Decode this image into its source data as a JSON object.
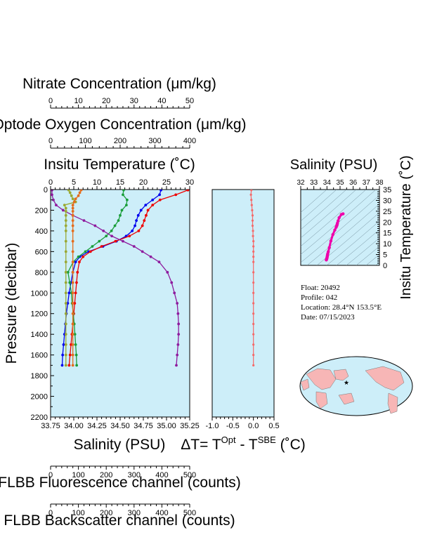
{
  "colors": {
    "panel_bg": "#cdeef9",
    "temperature": "#0000ee",
    "salinity": "#ee0000",
    "oxygen": "#1a9e3a",
    "nitrate": "#8e1b9e",
    "fluorescence": "#9aa832",
    "backscatter": "#e46c1c",
    "delta_t": "#f46a6a",
    "ts_line": "#ee00aa",
    "land": "#f7b6b6",
    "ocean": "#cdeef9",
    "marker": "#0000ee"
  },
  "icons": [
    "star-marker-icon"
  ],
  "axes": {
    "nitrate": {
      "title": "Nitrate Concentration (μm/kg)",
      "range": [
        0,
        50
      ],
      "ticks": [
        "0",
        "10",
        "20",
        "30",
        "40",
        "50"
      ]
    },
    "oxygen": {
      "title": "Optode Oxygen Concentration (μm/kg)",
      "range": [
        0,
        400
      ],
      "ticks": [
        "0",
        "100",
        "200",
        "300",
        "400"
      ]
    },
    "temperature": {
      "title": "Insitu Temperature (˚C)",
      "range": [
        0,
        30
      ],
      "ticks": [
        "0",
        "5",
        "10",
        "15",
        "20",
        "25",
        "30"
      ]
    },
    "pressure": {
      "title": "Pressure (decibar)",
      "range": [
        0,
        2200
      ],
      "ticks": [
        "0",
        "200",
        "400",
        "600",
        "800",
        "1000",
        "1200",
        "1400",
        "1600",
        "1800",
        "2000",
        "2200"
      ]
    },
    "salinity": {
      "title": "Salinity (PSU)",
      "range": [
        33.75,
        35.25
      ],
      "ticks": [
        "33.75",
        "34.00",
        "34.25",
        "34.50",
        "34.75",
        "35.00",
        "35.25"
      ]
    },
    "delta_t": {
      "title_main": "ΔT= T",
      "title_sup1": "Opt",
      "title_mid": " - T",
      "title_sup2": "SBE",
      "title_end": " (˚C)",
      "range": [
        -1.0,
        0.5
      ],
      "ticks": [
        "-1.0",
        "-0.5",
        "0.0",
        "0.5"
      ]
    },
    "fluorescence": {
      "title": "FLBB Fluorescence channel (counts)",
      "range": [
        0,
        500
      ],
      "ticks": [
        "0",
        "100",
        "200",
        "300",
        "400",
        "500"
      ]
    },
    "backscatter": {
      "title": "FLBB Backscatter channel (counts)",
      "range": [
        0,
        500
      ],
      "ticks": [
        "0",
        "100",
        "200",
        "300",
        "400",
        "500"
      ]
    },
    "ts_salinity": {
      "title": "Salinity (PSU)",
      "range": [
        32,
        38
      ],
      "ticks": [
        "32",
        "33",
        "34",
        "35",
        "36",
        "37",
        "38"
      ]
    },
    "ts_temperature": {
      "title": "Insitu Temperature (˚C)",
      "range": [
        0,
        35
      ],
      "ticks": [
        "0",
        "5",
        "10",
        "15",
        "20",
        "25",
        "30",
        "35"
      ]
    }
  },
  "info": {
    "float": "Float:  20492",
    "profile": "Profile:  042",
    "location": "Location:  28.4°N  153.5°E",
    "date": "Date:  07/15/2023"
  },
  "map": {
    "marker_lat": 28.4,
    "marker_lon": 153.5
  },
  "chart_data": {
    "type": "line",
    "y_axis": "pressure",
    "y_reversed": true,
    "series": [
      {
        "key": "temperature",
        "axis": "temperature",
        "x": [
          23.8,
          23.5,
          22.0,
          20.5,
          19.5,
          18.9,
          18.5,
          18.2,
          17.6,
          16.3,
          14.2,
          11.3,
          8.2,
          6.3,
          5.4,
          4.8,
          4.4,
          4.0,
          3.7,
          3.4,
          3.2,
          3.0,
          2.8,
          2.6,
          2.5
        ],
        "y": [
          5,
          50,
          100,
          150,
          200,
          250,
          300,
          350,
          400,
          450,
          500,
          550,
          600,
          650,
          700,
          800,
          900,
          1000,
          1100,
          1200,
          1300,
          1400,
          1500,
          1600,
          1700
        ]
      },
      {
        "key": "salinity",
        "axis": "salinity",
        "x": [
          35.23,
          35.1,
          34.93,
          34.85,
          34.8,
          34.78,
          34.76,
          34.74,
          34.7,
          34.6,
          34.45,
          34.3,
          34.18,
          34.1,
          34.06,
          34.04,
          34.03,
          34.02,
          34.01,
          34.0,
          33.99,
          33.98,
          33.97,
          33.96,
          33.95
        ],
        "y": [
          5,
          50,
          100,
          150,
          200,
          250,
          300,
          350,
          400,
          450,
          500,
          550,
          600,
          650,
          700,
          800,
          900,
          1000,
          1100,
          1200,
          1300,
          1400,
          1500,
          1600,
          1700
        ]
      },
      {
        "key": "oxygen",
        "axis": "oxygen",
        "x": [
          210,
          208,
          220,
          218,
          205,
          200,
          195,
          185,
          175,
          160,
          140,
          120,
          100,
          80,
          65,
          50,
          55,
          60,
          62,
          65,
          68,
          70,
          72,
          74,
          75
        ],
        "y": [
          5,
          50,
          100,
          150,
          200,
          250,
          300,
          350,
          400,
          450,
          500,
          550,
          600,
          650,
          700,
          800,
          900,
          1000,
          1100,
          1200,
          1300,
          1400,
          1500,
          1600,
          1700
        ]
      },
      {
        "key": "nitrate",
        "axis": "nitrate",
        "x": [
          0.5,
          0.5,
          1.0,
          2.0,
          4.5,
          8.0,
          12.0,
          16.0,
          19.0,
          22.0,
          26.0,
          30.0,
          33.0,
          36.0,
          39.0,
          42.0,
          43.5,
          44.5,
          45.5,
          45.8,
          46.0,
          46.0,
          45.8,
          45.5,
          45.2
        ],
        "y": [
          5,
          50,
          100,
          150,
          200,
          250,
          300,
          350,
          400,
          450,
          500,
          550,
          600,
          650,
          700,
          800,
          900,
          1000,
          1100,
          1200,
          1300,
          1400,
          1500,
          1600,
          1700
        ]
      },
      {
        "key": "fluorescence",
        "axis": "fluorescence",
        "x": [
          65,
          70,
          75,
          80,
          90,
          50,
          55,
          55,
          55,
          55,
          55,
          55,
          55,
          55,
          55,
          55,
          55,
          55,
          55,
          55,
          55,
          55,
          55,
          55,
          55
        ],
        "y": [
          5,
          30,
          60,
          90,
          120,
          150,
          180,
          210,
          250,
          300,
          350,
          400,
          500,
          600,
          700,
          800,
          900,
          1000,
          1100,
          1200,
          1300,
          1400,
          1500,
          1600,
          1700
        ]
      },
      {
        "key": "backscatter",
        "axis": "backscatter",
        "x": [
          110,
          105,
          100,
          90,
          85,
          80,
          80,
          80,
          80,
          80,
          80,
          80,
          80,
          80,
          80,
          80,
          80,
          80,
          80,
          80,
          80,
          80,
          80,
          80,
          80
        ],
        "y": [
          5,
          30,
          60,
          90,
          120,
          150,
          180,
          210,
          250,
          300,
          350,
          400,
          500,
          600,
          700,
          800,
          900,
          1000,
          1100,
          1200,
          1300,
          1400,
          1500,
          1600,
          1700
        ]
      },
      {
        "key": "delta_t",
        "axis": "delta_t",
        "x": [
          -0.05,
          -0.06,
          -0.05,
          -0.04,
          -0.03,
          -0.02,
          -0.02,
          -0.02,
          -0.01,
          -0.01,
          0.0,
          0.0,
          0.0,
          0.0,
          0.0,
          0.0,
          0.0,
          0.0,
          0.0,
          0.0,
          0.0,
          0.0,
          0.0,
          0.0,
          0.0
        ],
        "y": [
          5,
          50,
          100,
          150,
          200,
          250,
          300,
          350,
          400,
          450,
          500,
          550,
          600,
          650,
          700,
          800,
          900,
          1000,
          1100,
          1200,
          1300,
          1400,
          1500,
          1600,
          1700
        ]
      }
    ],
    "ts_diagram": {
      "type": "scatter",
      "salinity": [
        35.23,
        35.1,
        34.93,
        34.85,
        34.8,
        34.78,
        34.76,
        34.74,
        34.7,
        34.6,
        34.45,
        34.3,
        34.18,
        34.1,
        34.06,
        34.04,
        34.03,
        34.02,
        34.01,
        34.0,
        33.99,
        33.98,
        33.97,
        33.96,
        33.95
      ],
      "temperature": [
        23.8,
        23.5,
        22.0,
        20.5,
        19.5,
        18.9,
        18.5,
        18.2,
        17.6,
        16.3,
        14.2,
        11.3,
        8.2,
        6.3,
        5.4,
        4.8,
        4.4,
        4.0,
        3.7,
        3.4,
        3.2,
        3.0,
        2.8,
        2.6,
        2.5
      ]
    }
  }
}
